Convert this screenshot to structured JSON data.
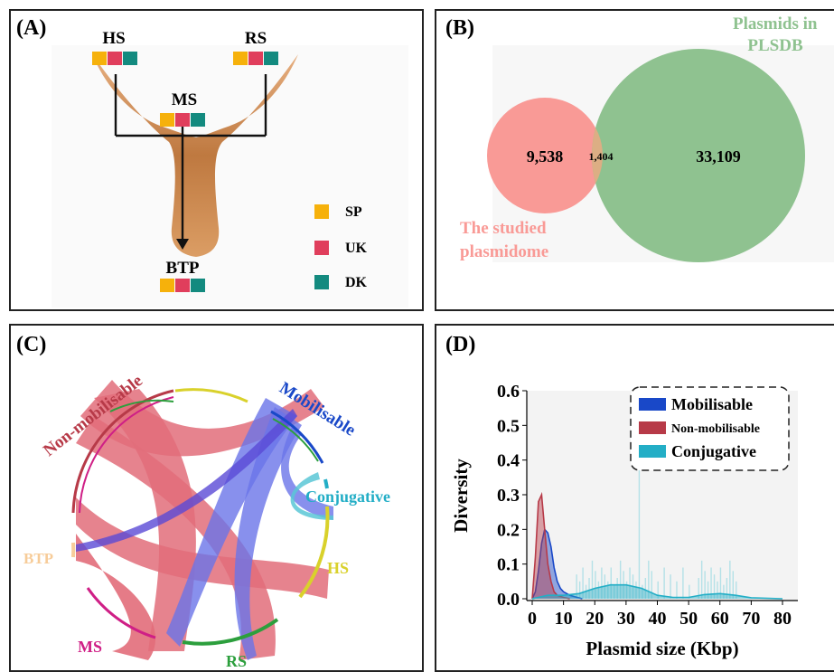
{
  "colors": {
    "SP": "#f6b10b",
    "UK": "#e03e5c",
    "DK": "#138a7f",
    "studied": "#f99a96",
    "plsdb": "#8fc290",
    "overlap": "#dcae84",
    "mob": "#1948c8",
    "nonmob": "#b73a48",
    "conj": "#23aec6",
    "hs": "#d9d12b",
    "ms": "#cf1f86",
    "rs": "#2c9f3d",
    "btp": "#f7cc99"
  },
  "panelA": {
    "label": "(A)",
    "nodes": {
      "hs": "HS",
      "rs": "RS",
      "ms": "MS",
      "btp": "BTP"
    },
    "legend": [
      {
        "key": "SP",
        "label": "SP"
      },
      {
        "key": "UK",
        "label": "UK"
      },
      {
        "key": "DK",
        "label": "DK"
      }
    ]
  },
  "panelB": {
    "label": "(B)",
    "plsdb_title_1": "Plasmids in",
    "plsdb_title_2": "PLSDB",
    "studied_title_1": "The studied",
    "studied_title_2": "plasmidome",
    "left_only": "9,538",
    "overlap": "1,404",
    "right_only": "33,109"
  },
  "panelC": {
    "label": "(C)",
    "groups": {
      "nonmob": "Non-mobilisable",
      "mob": "Mobilisable",
      "conj": "Conjugative",
      "hs": "HS",
      "rs": "RS",
      "ms": "MS",
      "btp": "BTP"
    }
  },
  "panelD": {
    "label": "(D)",
    "legend": {
      "mob": "Mobilisable",
      "nonmob": "Non-mobilisable",
      "conj": "Conjugative"
    }
  },
  "chart_data": {
    "type": "area",
    "xlabel": "Plasmid size (Kbp)",
    "ylabel": "Diversity",
    "xlim": [
      0,
      80
    ],
    "ylim": [
      0,
      0.6
    ],
    "xticks": [
      "0",
      "10",
      "20",
      "30",
      "40",
      "50",
      "60",
      "70",
      "80"
    ],
    "yticks": [
      "0.0",
      "0.1",
      "0.2",
      "0.3",
      "0.4",
      "0.5",
      "0.6"
    ],
    "series": [
      {
        "name": "Mobilisable",
        "x": [
          0,
          1,
          2,
          3,
          4,
          5,
          6,
          7,
          8,
          9,
          10,
          12,
          14,
          16
        ],
        "values": [
          0,
          0.02,
          0.08,
          0.16,
          0.2,
          0.19,
          0.15,
          0.09,
          0.05,
          0.03,
          0.02,
          0.01,
          0.005,
          0
        ]
      },
      {
        "name": "Non-mobilisable",
        "x": [
          0,
          1,
          2,
          3,
          4,
          5,
          6,
          7,
          8,
          10,
          12
        ],
        "values": [
          0,
          0.12,
          0.28,
          0.3,
          0.2,
          0.1,
          0.05,
          0.02,
          0.01,
          0.004,
          0
        ]
      },
      {
        "name": "Conjugative",
        "x": [
          0,
          5,
          10,
          15,
          20,
          25,
          30,
          35,
          40,
          45,
          50,
          55,
          60,
          65,
          70,
          80
        ],
        "values": [
          0,
          0.01,
          0.01,
          0.015,
          0.03,
          0.04,
          0.04,
          0.03,
          0.01,
          0.004,
          0.004,
          0.012,
          0.015,
          0.01,
          0.003,
          0
        ]
      }
    ]
  }
}
